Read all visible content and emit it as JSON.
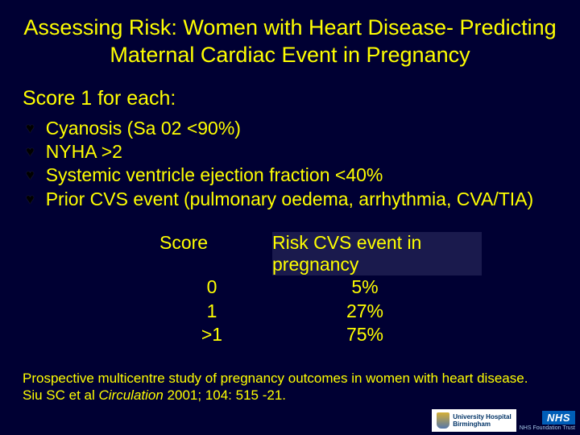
{
  "colors": {
    "background": "#000033",
    "text": "#ffff00",
    "table_header_bg": "#1a1a4d",
    "nhs_blue": "#005eb8"
  },
  "typography": {
    "title_fontsize": 27,
    "body_fontsize": 23,
    "citation_fontsize": 17,
    "font_family": "Verdana"
  },
  "title": "Assessing Risk: Women with Heart Disease- Predicting Maternal Cardiac Event in Pregnancy",
  "subhead": "Score 1 for each:",
  "bullets": [
    "Cyanosis (Sa 02 <90%)",
    "NYHA >2",
    "Systemic ventricle ejection fraction <40%",
    "Prior CVS event (pulmonary oedema, arrhythmia, CVA/TIA)"
  ],
  "table": {
    "headers": {
      "c1": "Score",
      "c2": "Risk CVS event in pregnancy"
    },
    "rows": [
      {
        "score": "0",
        "risk": "5%"
      },
      {
        "score": "1",
        "risk": "27%"
      },
      {
        "score": ">1",
        "risk": "75%"
      }
    ]
  },
  "citation": {
    "line1": "Prospective multicentre study of pregnancy outcomes in women with heart disease.",
    "author": "Siu SC et al ",
    "journal": "Circulation ",
    "ref": "2001; 104: 515 -21."
  },
  "logos": {
    "uhb_line1": "University Hospital",
    "uhb_line2": "Birmingham",
    "nhs": "NHS",
    "nhs_sub": "NHS Foundation Trust"
  }
}
